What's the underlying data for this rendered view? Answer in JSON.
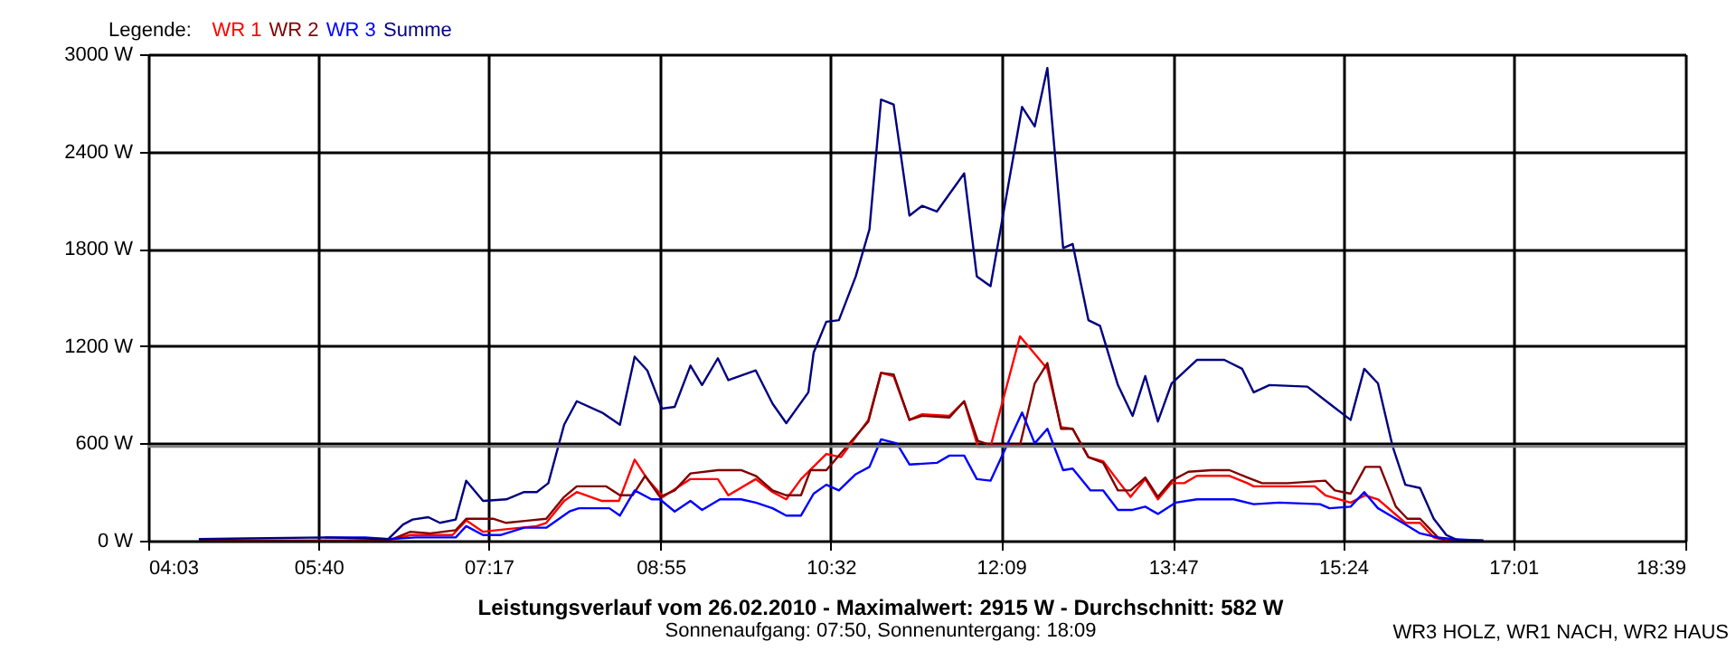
{
  "chart_data": {
    "type": "line",
    "title": "Leistungsverlauf vom 26.02.2010 - Maximalwert: 2915 W - Durchschnitt: 582 W",
    "subtitle": "Sonnenaufgang: 07:50, Sonnenuntergang: 18:09",
    "annotations": [
      "WR3 HOLZ, WR1 NACH, WR2 HAUS"
    ],
    "legend_title": "Legende:",
    "legend": "top left",
    "grid": true,
    "marker": "none",
    "line_style": "solid",
    "xlim": [
      4.05,
      18.65
    ],
    "xticks": [
      {
        "value": 4.05,
        "label": "04:03"
      },
      {
        "value": 5.6667,
        "label": "05:40"
      },
      {
        "value": 7.2833,
        "label": "07:17"
      },
      {
        "value": 8.9167,
        "label": "08:55"
      },
      {
        "value": 10.5333,
        "label": "10:32"
      },
      {
        "value": 12.15,
        "label": "12:09"
      },
      {
        "value": 13.7833,
        "label": "13:47"
      },
      {
        "value": 15.4,
        "label": "15:24"
      },
      {
        "value": 17.0167,
        "label": "17:01"
      },
      {
        "value": 18.65,
        "label": "18:39"
      }
    ],
    "ylim": [
      0,
      3000
    ],
    "yticks": [
      {
        "value": 0,
        "label": "0 W"
      },
      {
        "value": 600,
        "label": "600 W"
      },
      {
        "value": 1200,
        "label": "1200 W"
      },
      {
        "value": 1800,
        "label": "1800 W"
      },
      {
        "value": 2400,
        "label": "2400 W"
      },
      {
        "value": 3000,
        "label": "3000 W"
      }
    ],
    "ref_lines": [
      {
        "axis": "y",
        "value": 582,
        "color": "#808080"
      }
    ],
    "series": [
      {
        "name": "WR 1",
        "color": "#ff0000",
        "x": [
          4.53,
          6.33,
          6.54,
          6.94,
          7.07,
          7.23,
          7.36,
          7.74,
          7.83,
          8.0,
          8.12,
          8.36,
          8.52,
          8.67,
          8.79,
          8.94,
          9.2,
          9.46,
          9.56,
          9.82,
          9.98,
          10.11,
          10.25,
          10.49,
          10.63,
          10.89,
          11.01,
          11.13,
          11.28,
          11.4,
          11.66,
          11.8,
          11.93,
          12.05,
          12.33,
          12.59,
          12.72,
          12.83,
          12.98,
          13.12,
          13.26,
          13.38,
          13.52,
          13.64,
          13.77,
          13.89,
          14.01,
          14.32,
          14.49,
          14.55,
          15.13,
          15.23,
          15.47,
          15.61,
          15.73,
          15.99,
          16.13,
          16.26,
          16.38,
          16.73
        ],
        "values": [
          0,
          0,
          35,
          35,
          125,
          55,
          65,
          90,
          110,
          245,
          300,
          245,
          245,
          500,
          380,
          270,
          380,
          380,
          280,
          380,
          300,
          255,
          380,
          535,
          515,
          745,
          1035,
          1015,
          745,
          780,
          770,
          860,
          580,
          580,
          1260,
          1060,
          700,
          690,
          515,
          490,
          370,
          270,
          380,
          255,
          355,
          355,
          400,
          400,
          355,
          335,
          335,
          280,
          235,
          280,
          255,
          110,
          110,
          20,
          0,
          0
        ]
      },
      {
        "name": "WR 2",
        "color": "#800000",
        "x": [
          4.53,
          6.33,
          6.54,
          6.73,
          6.97,
          7.07,
          7.33,
          7.45,
          7.67,
          7.83,
          8.0,
          8.12,
          8.4,
          8.53,
          8.65,
          8.77,
          8.91,
          9.05,
          9.2,
          9.46,
          9.68,
          9.82,
          9.98,
          10.11,
          10.25,
          10.34,
          10.49,
          10.89,
          11.01,
          11.13,
          11.28,
          11.4,
          11.66,
          11.8,
          11.93,
          12.05,
          12.33,
          12.47,
          12.59,
          12.72,
          12.83,
          12.98,
          13.12,
          13.26,
          13.38,
          13.52,
          13.64,
          13.77,
          13.93,
          14.15,
          14.32,
          14.49,
          14.63,
          14.87,
          15.23,
          15.32,
          15.47,
          15.61,
          15.75,
          15.9,
          16.01,
          16.13,
          16.3,
          16.38,
          16.73
        ],
        "values": [
          0,
          0,
          55,
          45,
          65,
          135,
          135,
          110,
          125,
          135,
          270,
          335,
          335,
          280,
          280,
          400,
          270,
          310,
          415,
          435,
          435,
          400,
          310,
          280,
          280,
          435,
          435,
          735,
          1035,
          1025,
          745,
          770,
          760,
          860,
          615,
          590,
          590,
          970,
          1095,
          690,
          690,
          515,
          480,
          310,
          310,
          390,
          270,
          370,
          425,
          435,
          435,
          390,
          355,
          355,
          370,
          310,
          290,
          455,
          455,
          210,
          135,
          135,
          20,
          0,
          0
        ]
      },
      {
        "name": "WR 3",
        "color": "#0000ff",
        "x": [
          5.73,
          6.11,
          6.33,
          6.59,
          6.97,
          7.07,
          7.23,
          7.4,
          7.62,
          7.83,
          8.05,
          8.14,
          8.43,
          8.53,
          8.67,
          8.83,
          8.91,
          9.05,
          9.2,
          9.31,
          9.48,
          9.68,
          9.82,
          9.98,
          10.11,
          10.25,
          10.37,
          10.49,
          10.61,
          10.77,
          10.9,
          11.01,
          11.16,
          11.28,
          11.54,
          11.66,
          11.8,
          11.92,
          12.05,
          12.35,
          12.47,
          12.59,
          12.74,
          12.83,
          13.0,
          13.12,
          13.26,
          13.4,
          13.52,
          13.64,
          13.81,
          14.01,
          14.36,
          14.55,
          14.79,
          15.18,
          15.27,
          15.47,
          15.6,
          15.73,
          15.99,
          16.13,
          16.3,
          16.44,
          16.73
        ],
        "values": [
          20,
          20,
          10,
          20,
          20,
          90,
          35,
          35,
          80,
          80,
          180,
          200,
          200,
          155,
          310,
          255,
          255,
          180,
          245,
          190,
          255,
          255,
          235,
          200,
          155,
          155,
          290,
          345,
          310,
          410,
          455,
          625,
          600,
          470,
          480,
          525,
          525,
          380,
          370,
          790,
          600,
          690,
          435,
          445,
          310,
          310,
          190,
          190,
          210,
          165,
          235,
          255,
          255,
          225,
          235,
          225,
          200,
          210,
          300,
          200,
          100,
          45,
          20,
          10,
          0
        ]
      },
      {
        "name": "Summe",
        "color": "#000080",
        "x": [
          4.53,
          5.73,
          6.33,
          6.47,
          6.56,
          6.71,
          6.82,
          6.97,
          7.07,
          7.23,
          7.45,
          7.62,
          7.74,
          7.85,
          8.0,
          8.12,
          8.36,
          8.53,
          8.67,
          8.79,
          8.93,
          9.05,
          9.2,
          9.31,
          9.46,
          9.56,
          9.82,
          9.98,
          10.11,
          10.32,
          10.37,
          10.49,
          10.61,
          10.77,
          10.9,
          11.01,
          11.13,
          11.28,
          11.4,
          11.54,
          11.8,
          11.92,
          12.05,
          12.35,
          12.47,
          12.59,
          12.74,
          12.83,
          12.98,
          13.09,
          13.26,
          13.4,
          13.52,
          13.64,
          13.77,
          14.01,
          14.27,
          14.44,
          14.55,
          14.7,
          15.06,
          15.27,
          15.47,
          15.6,
          15.73,
          15.87,
          15.99,
          16.13,
          16.26,
          16.38,
          16.5,
          16.73
        ],
        "values": [
          10,
          20,
          10,
          100,
          130,
          145,
          110,
          130,
          370,
          245,
          255,
          300,
          300,
          355,
          715,
          860,
          790,
          715,
          1135,
          1050,
          815,
          825,
          1080,
          960,
          1125,
          990,
          1050,
          845,
          725,
          915,
          1160,
          1350,
          1360,
          1630,
          1920,
          2720,
          2690,
          2005,
          2065,
          2030,
          2265,
          1630,
          1570,
          2675,
          2555,
          2915,
          1805,
          1830,
          1360,
          1325,
          960,
          770,
          1015,
          735,
          970,
          1115,
          1115,
          1060,
          915,
          960,
          950,
          845,
          745,
          1060,
          970,
          580,
          345,
          325,
          135,
          35,
          0,
          0
        ]
      }
    ]
  }
}
